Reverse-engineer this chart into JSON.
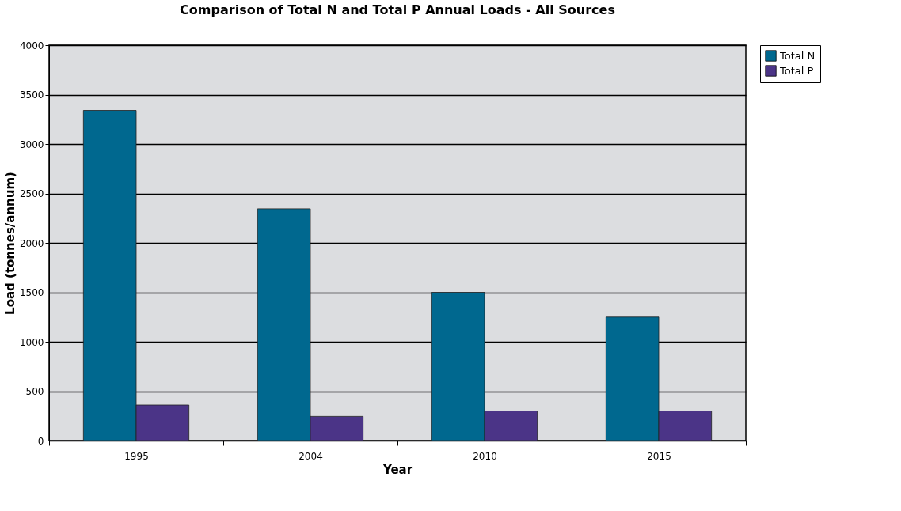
{
  "chart_data": {
    "type": "bar",
    "title": "Comparison of Total N and Total P Annual Loads - All Sources",
    "xlabel": "Year",
    "ylabel": "Load (tonnes/annum)",
    "categories": [
      "1995",
      "2004",
      "2010",
      "2015"
    ],
    "series": [
      {
        "name": "Total N",
        "color": "#00688f",
        "values": [
          3340,
          2345,
          1500,
          1250
        ]
      },
      {
        "name": "Total P",
        "color": "#4b3487",
        "values": [
          360,
          245,
          300,
          300
        ]
      }
    ],
    "ylim": [
      0,
      4000
    ],
    "yticks": [
      0,
      500,
      1000,
      1500,
      2000,
      2500,
      3000,
      3500,
      4000
    ],
    "grid": "y",
    "legend": "right"
  }
}
